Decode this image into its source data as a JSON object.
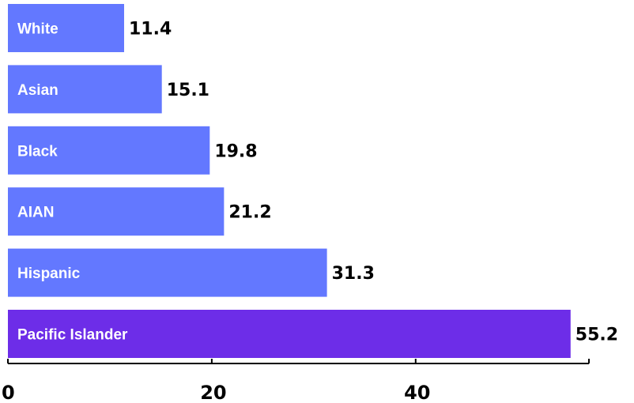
{
  "chart_data": {
    "type": "bar",
    "orientation": "horizontal",
    "categories": [
      "White",
      "Asian",
      "Black",
      "AIAN",
      "Hispanic",
      "Pacific Islander"
    ],
    "values": [
      11.4,
      15.1,
      19.8,
      21.2,
      31.3,
      55.2
    ],
    "value_labels": [
      "11.4",
      "15.1",
      "19.8",
      "21.2",
      "31.3",
      "55.2"
    ],
    "xlim": [
      0,
      57
    ],
    "xticks": [
      0,
      20,
      40
    ],
    "tick_labels": [
      "0",
      "20",
      "40"
    ],
    "bar_colors": [
      "#6378FF",
      "#6378FF",
      "#6378FF",
      "#6378FF",
      "#6378FF",
      "#6D2DE8"
    ],
    "grid": false,
    "legend": "none",
    "title": "",
    "xlabel": "",
    "ylabel": ""
  }
}
